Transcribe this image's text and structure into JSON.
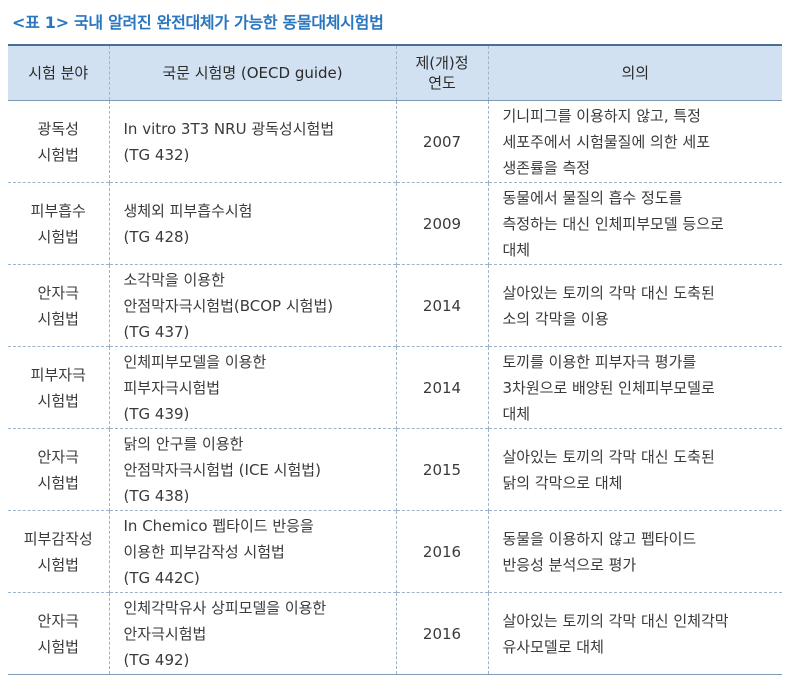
{
  "caption": "<표 1> 국내 알려진 완전대체가 가능한 동물대체시험법",
  "headers": {
    "field": "시험 분야",
    "name": "국문 시험명 (OECD guide)",
    "year_line1": "제(개)정",
    "year_line2": "연도",
    "meaning": "의의"
  },
  "rows": [
    {
      "field": [
        "광독성",
        "시험법"
      ],
      "name": [
        "In vitro 3T3 NRU 광독성시험법",
        "(TG 432)"
      ],
      "year": "2007",
      "meaning": [
        "기니피그를 이용하지 않고, 특정",
        "세포주에서 시험물질에 의한 세포",
        "생존률을 측정"
      ]
    },
    {
      "field": [
        "피부흡수",
        "시험법"
      ],
      "name": [
        "생체외 피부흡수시험",
        "(TG 428)"
      ],
      "year": "2009",
      "meaning": [
        "동물에서 물질의 흡수 정도를",
        "측정하는 대신 인체피부모델 등으로",
        "대체"
      ]
    },
    {
      "field": [
        "안자극",
        "시험법"
      ],
      "name": [
        "소각막을 이용한",
        "안점막자극시험법(BCOP 시험법)",
        "(TG 437)"
      ],
      "year": "2014",
      "meaning": [
        "살아있는 토끼의 각막 대신 도축된",
        "소의 각막을 이용"
      ]
    },
    {
      "field": [
        "피부자극",
        "시험법"
      ],
      "name": [
        "인체피부모델을 이용한",
        "피부자극시험법",
        "(TG 439)"
      ],
      "year": "2014",
      "meaning": [
        "토끼를 이용한 피부자극 평가를",
        "3차원으로 배양된 인체피부모델로",
        "대체"
      ]
    },
    {
      "field": [
        "안자극",
        "시험법"
      ],
      "name": [
        "닭의 안구를 이용한",
        "안점막자극시험법 (ICE 시험법)",
        "(TG 438)"
      ],
      "year": "2015",
      "meaning": [
        "살아있는 토끼의 각막 대신 도축된",
        "닭의 각막으로 대체"
      ]
    },
    {
      "field": [
        "피부감작성",
        "시험법"
      ],
      "name": [
        "In Chemico 펩타이드 반응을",
        "이용한 피부감작성 시험법",
        "(TG 442C)"
      ],
      "year": "2016",
      "meaning": [
        "동물을 이용하지 않고  펩타이드",
        "반응성 분석으로 평가"
      ]
    },
    {
      "field": [
        "안자극",
        "시험법"
      ],
      "name": [
        "인체각막유사 상피모델을 이용한",
        "안자극시험법",
        "(TG 492)"
      ],
      "year": "2016",
      "meaning": [
        "살아있는 토끼의 각막 대신 인체각막",
        "유사모델로 대체"
      ]
    }
  ]
}
